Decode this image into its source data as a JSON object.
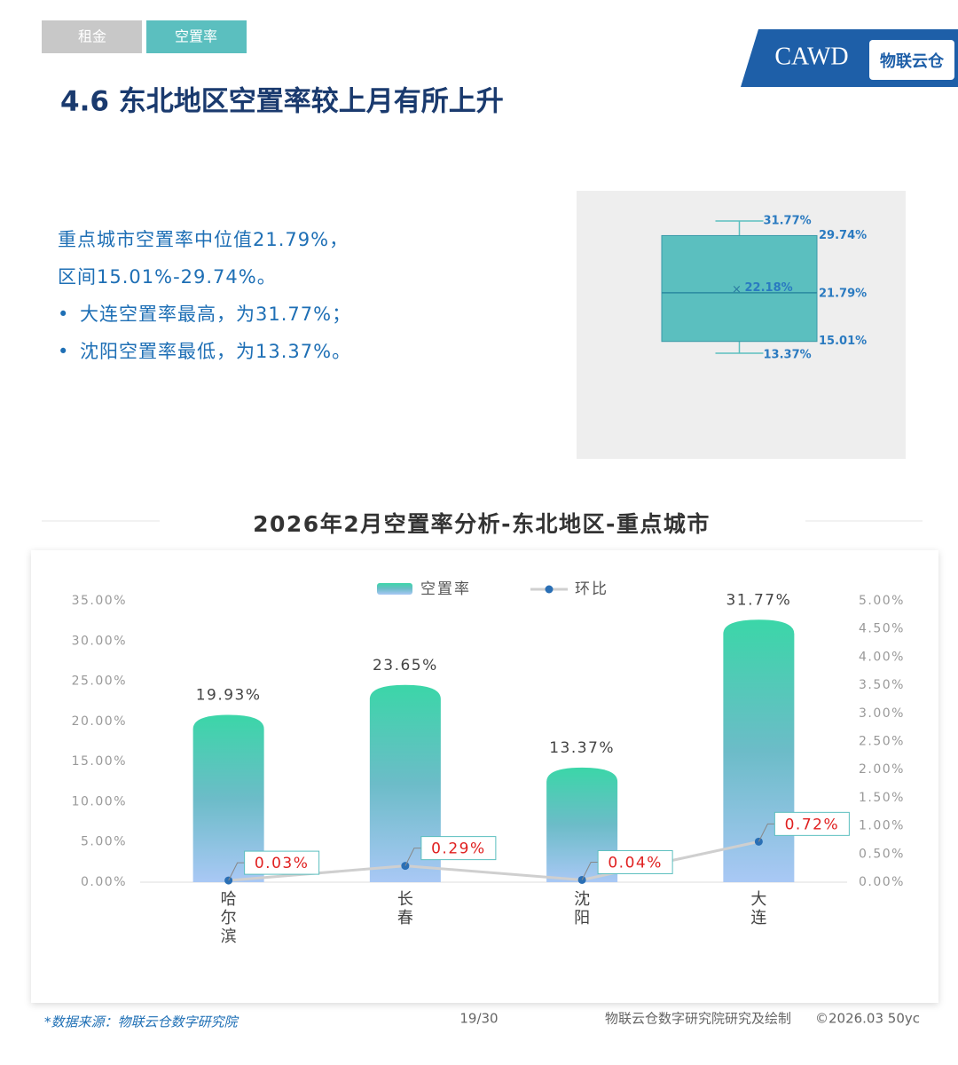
{
  "tabs": [
    "租金",
    "空置率"
  ],
  "logo": {
    "name": "CAWD",
    "brand": "物联云仓"
  },
  "title": "4.6 东北地区空置率较上月有所上升",
  "summary": [
    "重点城市空置率中位值21.79%，",
    "区间15.01%-29.74%。"
  ],
  "bullets": [
    "大连空置率最高，为31.77%；",
    "沈阳空置率最低，为13.37%。"
  ],
  "chart_data": [
    {
      "type": "box",
      "color": "#5bbfbf",
      "stats": {
        "min": 13.37,
        "q1": 15.01,
        "median": 21.79,
        "mean": 22.18,
        "q3": 29.74,
        "max": 31.77
      },
      "value_labels": {
        "min": "13.37%",
        "q1": "15.01%",
        "median": "21.79%",
        "mean": "22.18%",
        "q3": "29.74%",
        "max": "31.77%"
      }
    },
    {
      "type": "bar",
      "title": "2026年2月空置率分析-东北地区-重点城市",
      "categories": [
        "哈尔滨",
        "长春",
        "沈阳",
        "大连"
      ],
      "series": [
        {
          "name": "空置率",
          "color": "#3bd6a8",
          "values": [
            19.93,
            23.65,
            13.37,
            31.77
          ],
          "value_labels": [
            "19.93%",
            "23.65%",
            "13.37%",
            "31.77%"
          ]
        },
        {
          "name": "环比",
          "type": "line",
          "axis": "y2",
          "color": "#2a6fb5",
          "values": [
            0.03,
            0.29,
            0.04,
            0.72
          ],
          "value_labels": [
            "0.03%",
            "0.29%",
            "0.04%",
            "0.72%"
          ]
        }
      ],
      "ylim": [
        0,
        35
      ],
      "yticks": [
        {
          "value": 0,
          "label": "0.00%"
        },
        {
          "value": 5,
          "label": "5.00%"
        },
        {
          "value": 10,
          "label": "10.00%"
        },
        {
          "value": 15,
          "label": "15.00%"
        },
        {
          "value": 20,
          "label": "20.00%"
        },
        {
          "value": 25,
          "label": "25.00%"
        },
        {
          "value": 30,
          "label": "30.00%"
        },
        {
          "value": 35,
          "label": "35.00%"
        }
      ],
      "y2lim": [
        0,
        5
      ],
      "y2ticks": [
        {
          "value": 0,
          "label": "0.00%"
        },
        {
          "value": 0.5,
          "label": "0.50%"
        },
        {
          "value": 1,
          "label": "1.00%"
        },
        {
          "value": 1.5,
          "label": "1.50%"
        },
        {
          "value": 2,
          "label": "2.00%"
        },
        {
          "value": 2.5,
          "label": "2.50%"
        },
        {
          "value": 3,
          "label": "3.00%"
        },
        {
          "value": 3.5,
          "label": "3.50%"
        },
        {
          "value": 4,
          "label": "4.00%"
        },
        {
          "value": 4.5,
          "label": "4.50%"
        },
        {
          "value": 5,
          "label": "5.00%"
        }
      ]
    }
  ],
  "footer": {
    "source": "*数据来源：物联云仓数字研究院",
    "page": "19/30",
    "credit": "物联云仓数字研究院研究及绘制",
    "copyright": "©2026.03 50yc"
  }
}
